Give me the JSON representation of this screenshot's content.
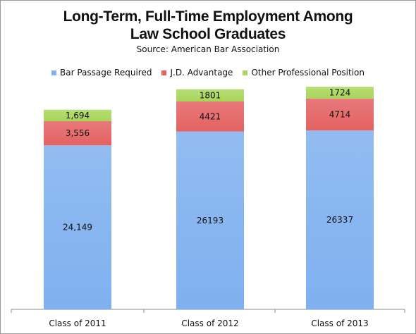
{
  "title_line1": "Long-Term, Full-Time Employment Among",
  "title_line2": "Law School Graduates",
  "subtitle": "Source: American Bar Association",
  "chart_data": {
    "type": "bar",
    "stacked": true,
    "title": "Long-Term, Full-Time Employment Among Law School Graduates",
    "subtitle": "Source: American Bar Association",
    "categories": [
      "Class of 2011",
      "Class of 2012",
      "Class of 2013"
    ],
    "series": [
      {
        "name": "Bar Passage Required",
        "values": [
          24149,
          26193,
          26337
        ],
        "labels": [
          "24,149",
          "26193",
          "26337"
        ],
        "color": "#7fb0ef"
      },
      {
        "name": "J.D. Advantage",
        "values": [
          3556,
          4421,
          4714
        ],
        "labels": [
          "3,556",
          "4421",
          "4714"
        ],
        "color": "#e46262"
      },
      {
        "name": "Other Professional Position",
        "values": [
          1694,
          1801,
          1724
        ],
        "labels": [
          "1,694",
          "1801",
          "1724"
        ],
        "color": "#a9d65a"
      }
    ],
    "ylim": [
      0,
      33000
    ],
    "grid": false,
    "legend_position": "top"
  }
}
